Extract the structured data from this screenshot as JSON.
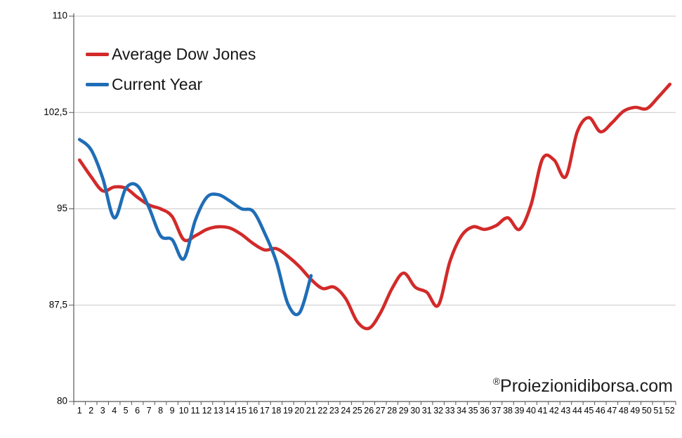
{
  "chart_data": {
    "type": "line",
    "title": "",
    "xlabel": "",
    "ylabel": "",
    "ylim": [
      80,
      110
    ],
    "grid": "horizontal",
    "legend_position": "top-left-inside",
    "y_ticks": [
      {
        "value": 110,
        "label": "110"
      },
      {
        "value": 102.5,
        "label": "102,5"
      },
      {
        "value": 95,
        "label": "95"
      },
      {
        "value": 87.5,
        "label": "87,5"
      },
      {
        "value": 80,
        "label": "80"
      }
    ],
    "x_categories": [
      "1",
      "2",
      "3",
      "4",
      "5",
      "6",
      "7",
      "8",
      "9",
      "10",
      "11",
      "12",
      "13",
      "14",
      "15",
      "16",
      "17",
      "18",
      "19",
      "20",
      "21",
      "22",
      "23",
      "24",
      "25",
      "26",
      "27",
      "28",
      "29",
      "30",
      "31",
      "32",
      "33",
      "34",
      "35",
      "36",
      "37",
      "38",
      "39",
      "40",
      "41",
      "42",
      "43",
      "44",
      "45",
      "46",
      "47",
      "48",
      "49",
      "50",
      "51",
      "52"
    ],
    "series": [
      {
        "name": "Average Dow Jones",
        "color": "#d22a2a",
        "x_start": 1,
        "values": [
          98.8,
          97.5,
          96.4,
          96.7,
          96.6,
          95.9,
          95.3,
          95.0,
          94.4,
          92.6,
          92.9,
          93.4,
          93.6,
          93.5,
          93.0,
          92.3,
          91.8,
          91.9,
          91.3,
          90.5,
          89.5,
          88.8,
          88.9,
          88.0,
          86.2,
          85.7,
          86.9,
          88.8,
          90.0,
          88.9,
          88.5,
          87.5,
          90.9,
          92.9,
          93.6,
          93.4,
          93.7,
          94.3,
          93.4,
          95.3,
          98.9,
          98.8,
          97.5,
          101.0,
          102.1,
          101.0,
          101.7,
          102.6,
          102.9,
          102.8,
          103.7,
          104.7
        ]
      },
      {
        "name": "Current Year",
        "color": "#1f6db6",
        "x_start": 1,
        "values": [
          100.4,
          99.6,
          97.4,
          94.3,
          96.6,
          96.8,
          95.1,
          92.9,
          92.6,
          91.1,
          94.1,
          95.9,
          96.1,
          95.6,
          95.0,
          94.8,
          93.1,
          90.9,
          87.6,
          86.9,
          89.8
        ]
      }
    ]
  },
  "legend": {
    "item1": "Average Dow Jones",
    "item2": "Current Year"
  },
  "watermark": {
    "prefix": "®",
    "text": "Proiezionidiborsa.com"
  },
  "colors": {
    "gridline": "#c9c9c9",
    "axis": "#595959",
    "tick_label": "#000000"
  }
}
